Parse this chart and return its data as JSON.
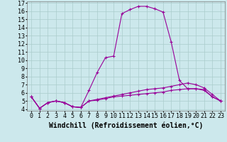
{
  "xlabel": "Windchill (Refroidissement éolien,°C)",
  "ylabel": "",
  "bg_color": "#cce8ec",
  "grid_color": "#aacccc",
  "line_color": "#990099",
  "xlim": [
    -0.5,
    23.5
  ],
  "ylim": [
    3.8,
    17.2
  ],
  "xticks": [
    0,
    1,
    2,
    3,
    4,
    5,
    6,
    7,
    8,
    9,
    10,
    11,
    12,
    13,
    14,
    15,
    16,
    17,
    18,
    19,
    20,
    21,
    22,
    23
  ],
  "yticks": [
    4,
    5,
    6,
    7,
    8,
    9,
    10,
    11,
    12,
    13,
    14,
    15,
    16,
    17
  ],
  "line1_x": [
    0,
    1,
    2,
    3,
    4,
    5,
    6,
    7,
    8,
    9,
    10,
    11,
    12,
    13,
    14,
    15,
    16,
    17,
    18,
    19,
    20,
    21,
    22,
    23
  ],
  "line1_y": [
    5.5,
    4.1,
    4.8,
    5.0,
    4.8,
    4.3,
    4.2,
    6.3,
    8.5,
    10.3,
    10.5,
    15.7,
    16.2,
    16.6,
    16.6,
    16.3,
    15.9,
    12.2,
    7.5,
    6.5,
    6.5,
    6.3,
    5.5,
    5.0
  ],
  "line2_x": [
    0,
    1,
    2,
    3,
    4,
    5,
    6,
    7,
    8,
    9,
    10,
    11,
    12,
    13,
    14,
    15,
    16,
    17,
    18,
    19,
    20,
    21,
    22,
    23
  ],
  "line2_y": [
    5.5,
    4.1,
    4.8,
    5.0,
    4.8,
    4.3,
    4.2,
    5.0,
    5.2,
    5.4,
    5.6,
    5.8,
    6.0,
    6.2,
    6.4,
    6.5,
    6.6,
    6.8,
    7.0,
    7.2,
    7.0,
    6.6,
    5.8,
    5.0
  ],
  "line3_x": [
    0,
    1,
    2,
    3,
    4,
    5,
    6,
    7,
    8,
    9,
    10,
    11,
    12,
    13,
    14,
    15,
    16,
    17,
    18,
    19,
    20,
    21,
    22,
    23
  ],
  "line3_y": [
    5.5,
    4.1,
    4.8,
    5.0,
    4.8,
    4.3,
    4.2,
    5.0,
    5.1,
    5.3,
    5.5,
    5.6,
    5.7,
    5.8,
    5.9,
    6.0,
    6.1,
    6.3,
    6.4,
    6.5,
    6.5,
    6.4,
    5.5,
    5.0
  ],
  "tick_fontsize": 6,
  "xlabel_fontsize": 7,
  "fig_width": 3.2,
  "fig_height": 2.0,
  "dpi": 100
}
